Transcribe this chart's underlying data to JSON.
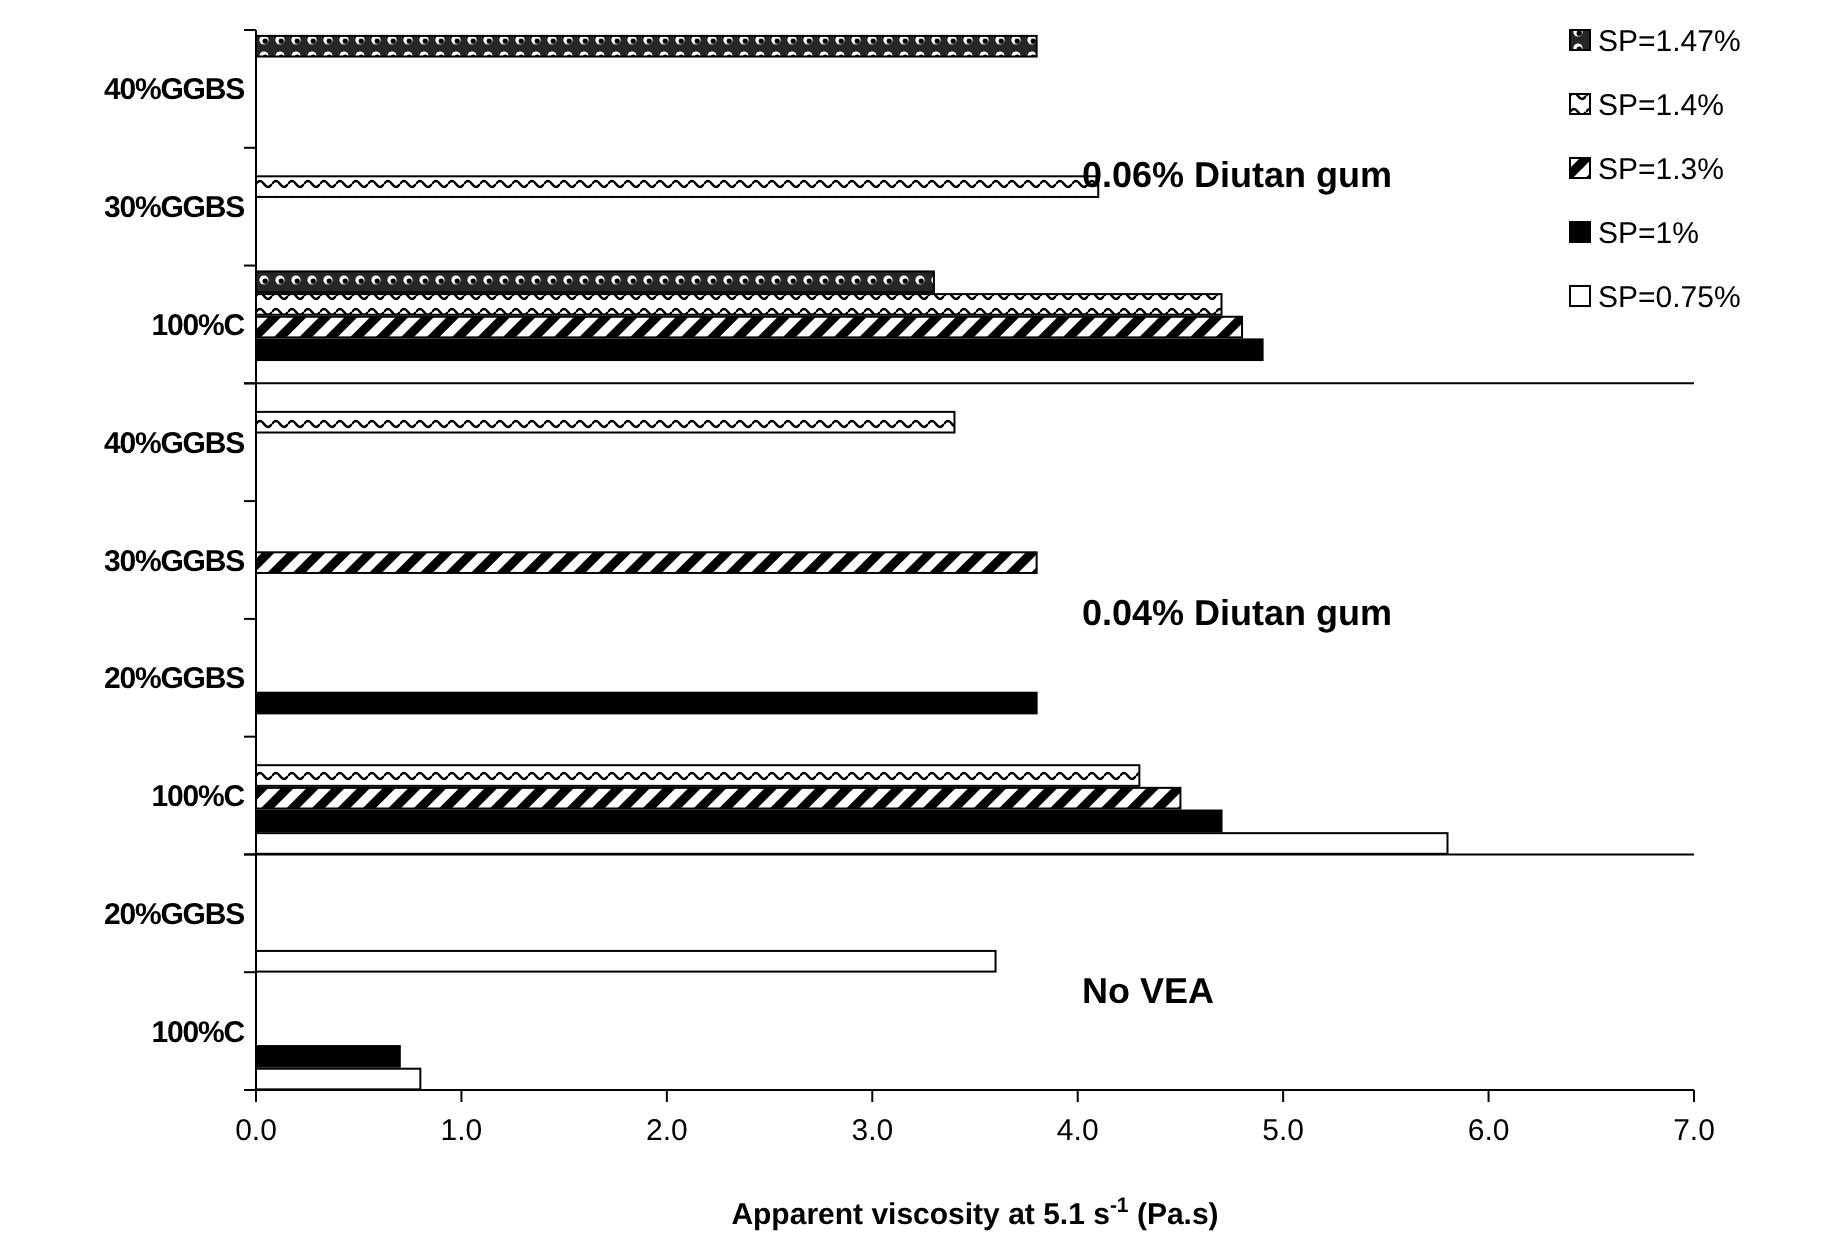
{
  "chart_data": [
    {
      "type": "bar",
      "orientation": "horizontal",
      "categories": [
        "40%GGBS",
        "30%GGBS",
        "100%C"
      ],
      "xlim": [
        0,
        7
      ],
      "tick_labels": "y",
      "legend": "top right",
      "annotations": [
        "0.06% Diutan gum"
      ],
      "series": [
        {
          "name": "SP=1.47%",
          "color": "#000000",
          "values": [
            3.8,
            null,
            3.3
          ]
        },
        {
          "name": "SP=1.4%",
          "color": "#000000",
          "values": [
            null,
            4.1,
            4.7
          ]
        },
        {
          "name": "SP=1.3%",
          "color": "#000000",
          "values": [
            null,
            null,
            4.8
          ]
        },
        {
          "name": "SP=1%",
          "color": "#000000",
          "values": [
            null,
            null,
            4.9
          ]
        },
        {
          "name": "SP=0.75%",
          "color": "#ffffff",
          "values": [
            null,
            null,
            null
          ]
        }
      ]
    },
    {
      "type": "bar",
      "orientation": "horizontal",
      "categories": [
        "40%GGBS",
        "30%GGBS",
        "20%GGBS",
        "100%C"
      ],
      "xlim": [
        0,
        7
      ],
      "tick_labels": "y",
      "annotations": [
        "0.04% Diutan gum"
      ],
      "series": [
        {
          "color": "#000000",
          "values": [
            null,
            null,
            null,
            null
          ]
        },
        {
          "color": "#000000",
          "values": [
            3.4,
            null,
            null,
            4.3
          ]
        },
        {
          "color": "#000000",
          "values": [
            null,
            3.8,
            null,
            4.5
          ]
        },
        {
          "color": "#000000",
          "values": [
            null,
            null,
            3.8,
            4.7
          ]
        },
        {
          "color": "#ffffff",
          "values": [
            null,
            null,
            null,
            5.8
          ]
        }
      ]
    },
    {
      "type": "bar",
      "orientation": "horizontal",
      "categories": [
        "20%GGBS",
        "100%C"
      ],
      "xlim": [
        0,
        7
      ],
      "xticks": [
        {
          "value": 0,
          "label": "0.0"
        },
        {
          "value": 1,
          "label": "1.0"
        },
        {
          "value": 2,
          "label": "2.0"
        },
        {
          "value": 3,
          "label": "3.0"
        },
        {
          "value": 4,
          "label": "4.0"
        },
        {
          "value": 5,
          "label": "5.0"
        },
        {
          "value": 6,
          "label": "6.0"
        },
        {
          "value": 7,
          "label": "7.0"
        }
      ],
      "xlabel": "Apparent viscosity at 5.1 s$^{-1}$ (Pa.s)",
      "annotations": [
        "No VEA"
      ],
      "series": [
        {
          "color": "#000000",
          "values": [
            null,
            null
          ]
        },
        {
          "color": "#000000",
          "values": [
            null,
            null
          ]
        },
        {
          "color": "#000000",
          "values": [
            null,
            null
          ]
        },
        {
          "color": "#000000",
          "values": [
            null,
            0.7
          ]
        },
        {
          "color": "#ffffff",
          "values": [
            3.6,
            0.8
          ]
        }
      ]
    }
  ]
}
